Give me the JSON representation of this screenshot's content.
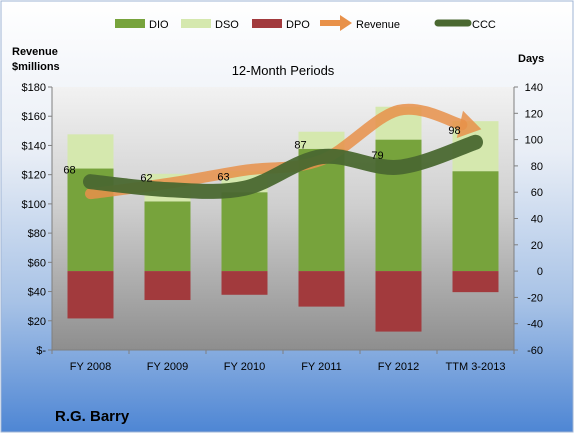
{
  "chart_data": {
    "type": "bar",
    "subtitle": "12-Month Periods",
    "company": "R.G. Barry",
    "left_axis_label_line1": "Revenue",
    "left_axis_label_line2": "$millions",
    "right_axis_label": "Days",
    "categories": [
      "FY 2008",
      "FY 2009",
      "FY 2010",
      "FY 2011",
      "FY 2012",
      "TTM 3-2013"
    ],
    "left_axis": {
      "ylim": [
        0,
        180
      ],
      "ticks": [
        0,
        20,
        40,
        60,
        80,
        100,
        120,
        140,
        160,
        180
      ],
      "tick_labels": [
        "$-",
        "$20",
        "$40",
        "$60",
        "$80",
        "$100",
        "$120",
        "$140",
        "$160",
        "$180"
      ]
    },
    "right_axis": {
      "ylim": [
        -60,
        140
      ],
      "ticks": [
        -60,
        -40,
        -20,
        0,
        20,
        40,
        60,
        80,
        100,
        120,
        140
      ],
      "tick_labels": [
        "-60",
        "-40",
        "-20",
        "0",
        "20",
        "40",
        "60",
        "80",
        "100",
        "120",
        "140"
      ]
    },
    "series": [
      {
        "name": "DIO",
        "axis": "right",
        "kind": "stacked-bar",
        "color": "#77A33C",
        "values": [
          78,
          53,
          60,
          93,
          100,
          76
        ]
      },
      {
        "name": "DSO",
        "axis": "right",
        "kind": "stacked-bar",
        "color": "#D5E8AE",
        "values": [
          26,
          21,
          16,
          13,
          25,
          38
        ]
      },
      {
        "name": "DPO",
        "axis": "right",
        "kind": "negative-bar",
        "color": "#A23A3D",
        "values": [
          -36,
          -22,
          -18,
          -27,
          -46,
          -16
        ]
      },
      {
        "name": "Revenue",
        "axis": "left",
        "kind": "arrow-line",
        "color": "#E8914A",
        "values": [
          107,
          114,
          123,
          130,
          164,
          152
        ]
      },
      {
        "name": "CCC",
        "axis": "right",
        "kind": "thick-line",
        "color": "#4A6830",
        "values": [
          68,
          62,
          63,
          87,
          79,
          98
        ]
      }
    ],
    "data_labels": [
      "68",
      "62",
      "63",
      "87",
      "79",
      "98"
    ],
    "legend_position": "top",
    "grid": false
  }
}
